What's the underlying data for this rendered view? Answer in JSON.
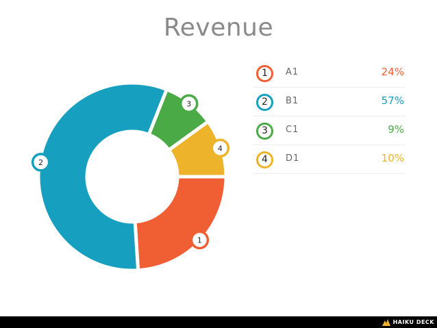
{
  "title": "Revenue",
  "footer": {
    "brand": "HAIKU DECK"
  },
  "colors": {
    "A1": "#f05f34",
    "B1": "#169fbf",
    "C1": "#4aaa46",
    "D1": "#ecb32b"
  },
  "chart_data": {
    "type": "pie",
    "title": "Revenue",
    "slices": [
      {
        "number": "1",
        "label": "A1",
        "value": 24,
        "display": "24%",
        "color": "#f05f34"
      },
      {
        "number": "2",
        "label": "B1",
        "value": 57,
        "display": "57%",
        "color": "#169fbf"
      },
      {
        "number": "3",
        "label": "C1",
        "value": 9,
        "display": "9%",
        "color": "#4aaa46"
      },
      {
        "number": "4",
        "label": "D1",
        "value": 10,
        "display": "10%",
        "color": "#ecb32b"
      }
    ],
    "legend": "right"
  }
}
